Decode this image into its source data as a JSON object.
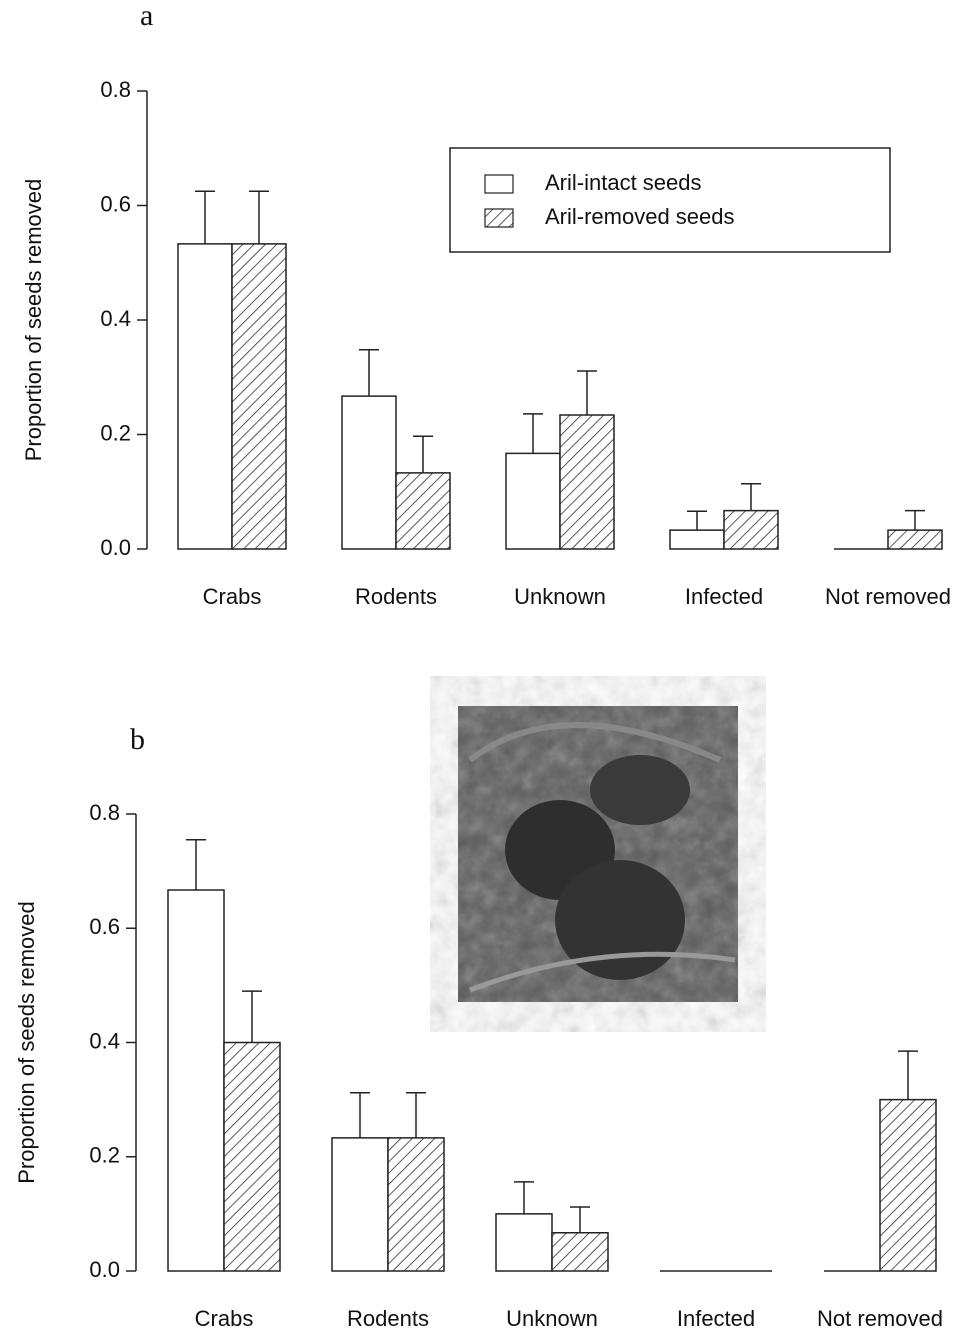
{
  "chart_data": [
    {
      "type": "bar",
      "title": "a",
      "ylabel": "Proportion of seeds removed",
      "categories": [
        "Crabs",
        "Rodents",
        "Unknown",
        "Infected",
        "Not removed"
      ],
      "series": [
        {
          "name": "Aril-intact seeds",
          "color": "#ffffff",
          "hatch": false,
          "values": [
            0.533,
            0.267,
            0.167,
            0.033,
            0
          ],
          "errors": [
            0.092,
            0.081,
            0.069,
            0.033,
            null
          ]
        },
        {
          "name": "Aril-removed seeds",
          "color": "#ffffff",
          "hatch": true,
          "values": [
            0.533,
            0.133,
            0.234,
            0.067,
            0.033
          ],
          "errors": [
            0.092,
            0.064,
            0.077,
            0.047,
            0.034
          ]
        }
      ],
      "ylim": [
        0,
        0.8
      ],
      "yticks": [
        {
          "value": 0,
          "label": "0.0"
        },
        0.2,
        0.4,
        0.6,
        0.8
      ],
      "legend": "upper right"
    },
    {
      "type": "bar",
      "title": "b",
      "ylabel": "Proportion of seeds removed",
      "categories": [
        "Crabs",
        "Rodents",
        "Unknown",
        "Infected",
        "Not removed"
      ],
      "series": [
        {
          "color": "#ffffff",
          "hatch": false,
          "values": [
            0.667,
            0.233,
            0.1,
            0,
            0
          ],
          "errors": [
            0.088,
            0.079,
            0.056,
            null,
            null
          ]
        },
        {
          "color": "#ffffff",
          "hatch": true,
          "values": [
            0.4,
            0.233,
            0.067,
            0,
            0.3
          ],
          "errors": [
            0.09,
            0.079,
            0.045,
            null,
            0.085
          ]
        }
      ],
      "ylim": [
        0,
        0.8
      ],
      "yticks": [
        {
          "value": 0,
          "label": "0.0"
        },
        0.2,
        0.4,
        0.6,
        0.8
      ]
    }
  ]
}
